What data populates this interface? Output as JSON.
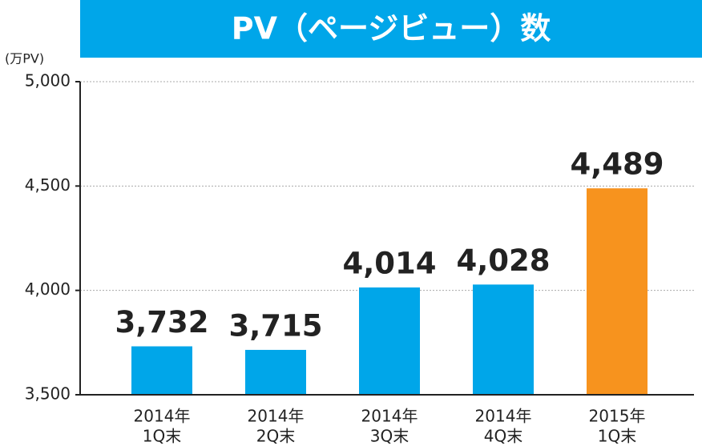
{
  "chart_data": {
    "type": "bar",
    "title": "PV（ページビュー）数",
    "y_label": "(万PV)",
    "categories": [
      [
        "2014年",
        "1Q末"
      ],
      [
        "2014年",
        "2Q末"
      ],
      [
        "2014年",
        "3Q末"
      ],
      [
        "2014年",
        "4Q末"
      ],
      [
        "2015年",
        "1Q末"
      ]
    ],
    "values": [
      3732,
      3715,
      4014,
      4028,
      4489
    ],
    "value_labels": [
      "3,732",
      "3,715",
      "4,014",
      "4,028",
      "4,489"
    ],
    "colors": [
      "#00a6e9",
      "#00a6e9",
      "#00a6e9",
      "#00a6e9",
      "#f7931e"
    ],
    "ylim": [
      3500,
      5000
    ],
    "yticks": [
      {
        "value": 3500,
        "label": "3,500"
      },
      {
        "value": 4000,
        "label": "4,000"
      },
      {
        "value": 4500,
        "label": "4,500"
      },
      {
        "value": 5000,
        "label": "5,000"
      }
    ],
    "grid": true
  }
}
